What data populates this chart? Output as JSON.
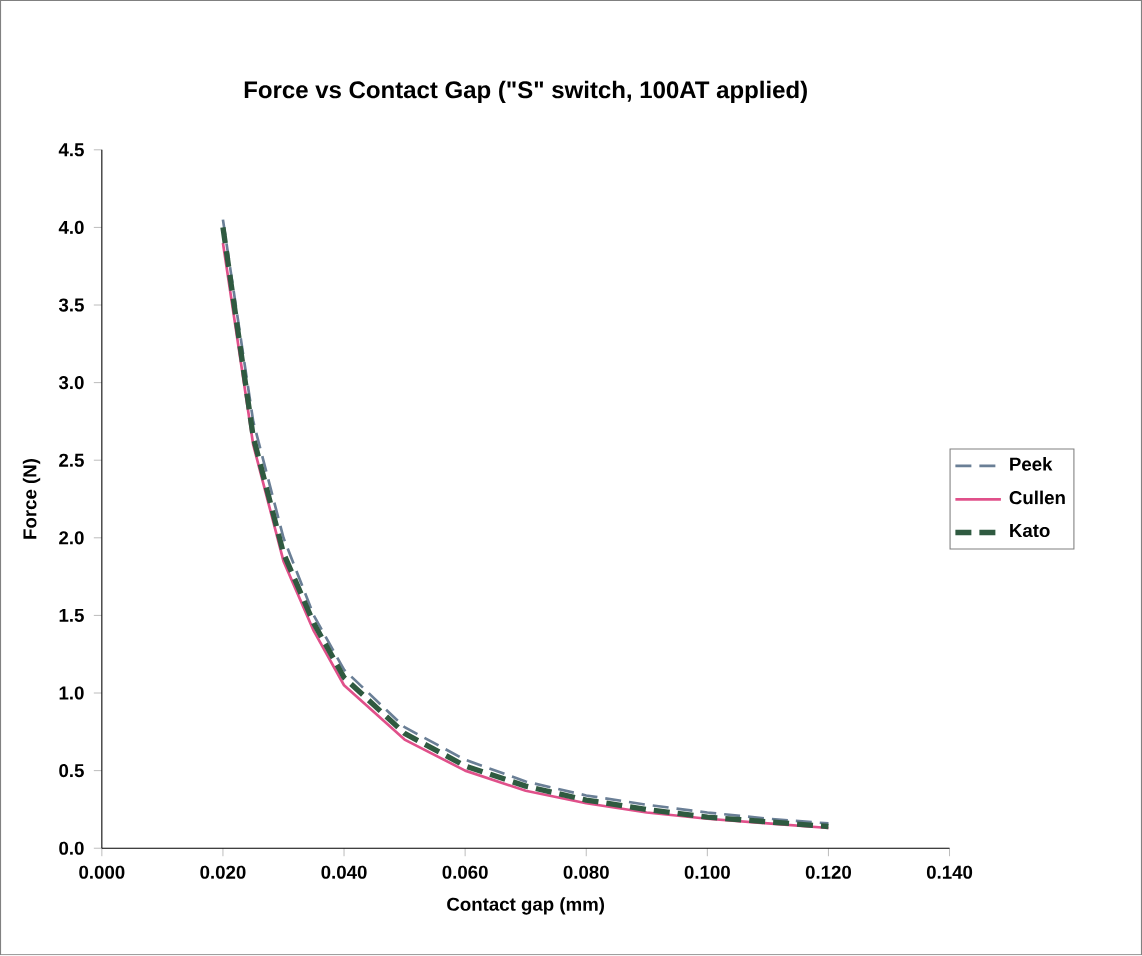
{
  "chart_data": {
    "type": "line",
    "title": "Force vs Contact Gap (\"S\" switch, 100AT applied)",
    "xlabel": "Contact gap (mm)",
    "ylabel": "Force (N)",
    "xlim": [
      0,
      0.14
    ],
    "ylim": [
      0,
      4.5
    ],
    "xticks": [
      {
        "value": 0,
        "label": "0.000"
      },
      {
        "value": 0.02,
        "label": "0.020"
      },
      {
        "value": 0.04,
        "label": "0.040"
      },
      {
        "value": 0.06,
        "label": "0.060"
      },
      {
        "value": 0.08,
        "label": "0.080"
      },
      {
        "value": 0.1,
        "label": "0.100"
      },
      {
        "value": 0.12,
        "label": "0.120"
      },
      {
        "value": 0.14,
        "label": "0.140"
      }
    ],
    "yticks": [
      {
        "value": 0,
        "label": "0.0"
      },
      {
        "value": 0.5,
        "label": "0.5"
      },
      {
        "value": 1,
        "label": "1.0"
      },
      {
        "value": 1.5,
        "label": "1.5"
      },
      {
        "value": 2,
        "label": "2.0"
      },
      {
        "value": 2.5,
        "label": "2.5"
      },
      {
        "value": 3,
        "label": "3.0"
      },
      {
        "value": 3.5,
        "label": "3.5"
      },
      {
        "value": 4,
        "label": "4.0"
      },
      {
        "value": 4.5,
        "label": "4.5"
      }
    ],
    "x": [
      0.02,
      0.025,
      0.03,
      0.035,
      0.04,
      0.05,
      0.06,
      0.07,
      0.08,
      0.09,
      0.1,
      0.11,
      0.12
    ],
    "legend": "right",
    "marker": "none",
    "grid": false,
    "series": [
      {
        "name": "Peek",
        "color": "#6a7f96",
        "line_style": "dashed",
        "values": [
          4.05,
          2.75,
          2.0,
          1.5,
          1.15,
          0.78,
          0.57,
          0.43,
          0.34,
          0.28,
          0.23,
          0.19,
          0.16
        ]
      },
      {
        "name": "Cullen",
        "color": "#e0508a",
        "line_style": "solid",
        "values": [
          3.9,
          2.6,
          1.85,
          1.4,
          1.05,
          0.7,
          0.5,
          0.37,
          0.29,
          0.23,
          0.19,
          0.16,
          0.13
        ]
      },
      {
        "name": "Kato",
        "color": "#2f5a40",
        "line_style": "dashed",
        "values": [
          4.0,
          2.65,
          1.9,
          1.45,
          1.1,
          0.74,
          0.53,
          0.4,
          0.31,
          0.25,
          0.2,
          0.17,
          0.14
        ]
      }
    ]
  }
}
